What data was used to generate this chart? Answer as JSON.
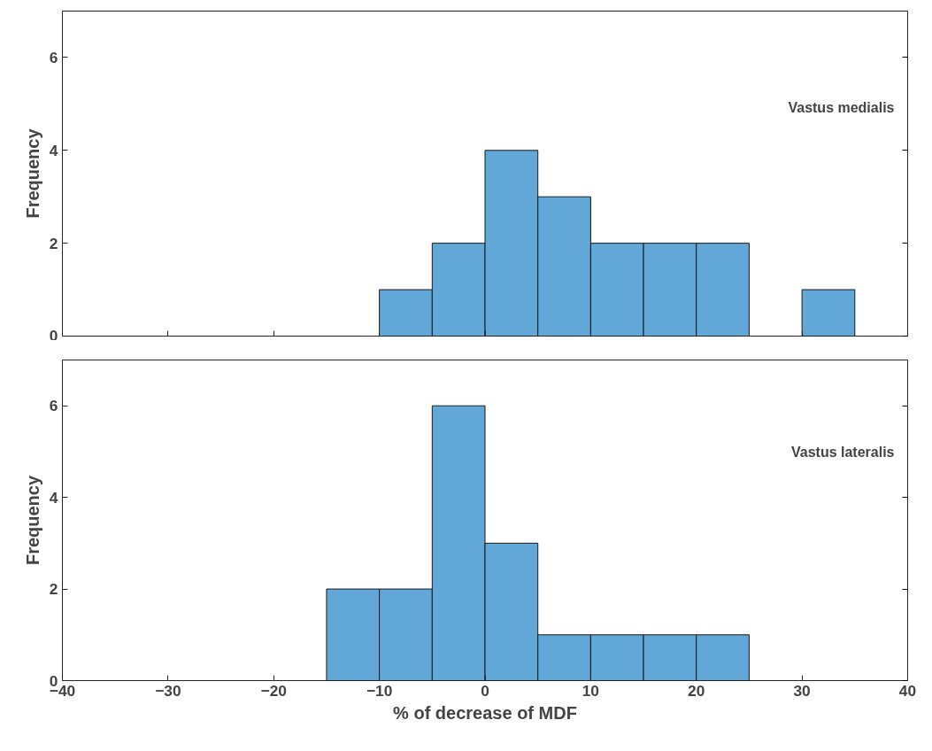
{
  "chart_data": [
    {
      "type": "histogram",
      "ylabel": "Frequency",
      "bins": [
        -10,
        -5,
        0,
        5,
        10,
        15,
        20,
        25,
        30,
        35
      ],
      "values": [
        1,
        2,
        4,
        3,
        2,
        2,
        2,
        0,
        1
      ],
      "color": "#61a8d8",
      "xlim": [
        -40,
        40
      ],
      "xticks": [
        -40,
        -30,
        -20,
        -10,
        0,
        10,
        20,
        30,
        40
      ],
      "ylim": [
        0,
        7
      ],
      "yticks": [
        0,
        2,
        4,
        6
      ],
      "tick_labels": "y",
      "grid": false,
      "annotations": [
        "Vastus medialis"
      ]
    },
    {
      "type": "histogram",
      "xlabel": "% of decrease of MDF",
      "ylabel": "Frequency",
      "bins": [
        -15,
        -10,
        -5,
        0,
        5,
        10,
        15,
        20,
        25
      ],
      "values": [
        2,
        2,
        6,
        3,
        1,
        1,
        1,
        1
      ],
      "color": "#61a8d8",
      "xlim": [
        -40,
        40
      ],
      "xticks": [
        -40,
        -30,
        -20,
        -10,
        0,
        10,
        20,
        30,
        40
      ],
      "ylim": [
        0,
        7
      ],
      "yticks": [
        0,
        2,
        4,
        6
      ],
      "grid": false,
      "annotations": [
        "Vastus lateralis"
      ]
    }
  ]
}
